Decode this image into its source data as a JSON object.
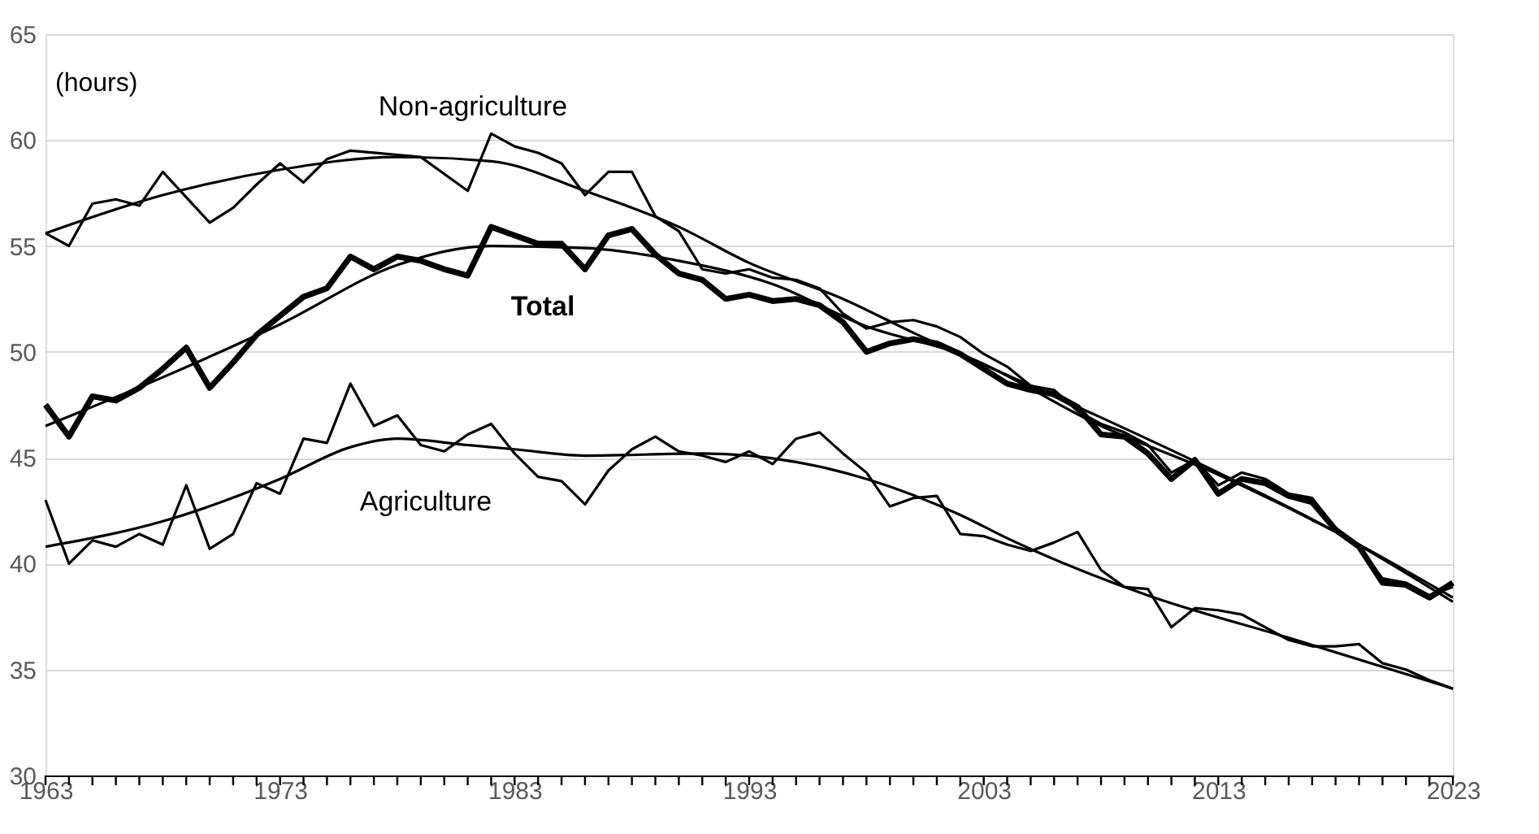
{
  "chart_data": {
    "type": "line",
    "ylabel": "(hours)",
    "x": [
      1963,
      1964,
      1965,
      1966,
      1967,
      1968,
      1969,
      1970,
      1971,
      1972,
      1973,
      1974,
      1975,
      1976,
      1977,
      1978,
      1979,
      1980,
      1981,
      1982,
      1983,
      1984,
      1985,
      1986,
      1987,
      1988,
      1989,
      1990,
      1991,
      1992,
      1993,
      1994,
      1995,
      1996,
      1997,
      1998,
      1999,
      2000,
      2001,
      2002,
      2003,
      2004,
      2005,
      2006,
      2007,
      2008,
      2009,
      2010,
      2011,
      2012,
      2013,
      2014,
      2015,
      2016,
      2017,
      2018,
      2019,
      2020,
      2021,
      2022,
      2023
    ],
    "series": [
      {
        "name": "Non-agriculture",
        "color": "#000000",
        "values": [
          55.6,
          55.0,
          57.0,
          57.2,
          56.9,
          58.5,
          57.3,
          56.1,
          56.8,
          57.9,
          58.9,
          58.0,
          59.1,
          59.5,
          59.4,
          59.3,
          59.2,
          58.4,
          57.6,
          60.3,
          59.7,
          59.4,
          58.9,
          57.4,
          58.5,
          58.5,
          56.4,
          55.7,
          53.9,
          53.7,
          53.9,
          53.5,
          53.4,
          53.0,
          51.8,
          51.1,
          51.4,
          51.5,
          51.2,
          50.7,
          49.9,
          49.3,
          48.4,
          48.2,
          47.2,
          46.6,
          46.2,
          45.6,
          44.3,
          44.9,
          43.7,
          44.3,
          44.0,
          43.3,
          43.1,
          41.7,
          40.8,
          39.3,
          39.1,
          38.5,
          38.9
        ]
      },
      {
        "name": "Total",
        "color": "#000000",
        "values": [
          47.5,
          46.0,
          47.9,
          47.7,
          48.3,
          49.2,
          50.2,
          48.3,
          49.5,
          50.8,
          51.7,
          52.6,
          53.0,
          54.5,
          53.9,
          54.5,
          54.3,
          53.9,
          53.6,
          55.9,
          55.5,
          55.1,
          55.1,
          53.9,
          55.5,
          55.8,
          54.6,
          53.7,
          53.4,
          52.5,
          52.7,
          52.4,
          52.5,
          52.2,
          51.4,
          50.0,
          50.4,
          50.6,
          50.4,
          49.9,
          49.2,
          48.5,
          48.2,
          48.0,
          47.4,
          46.1,
          46.0,
          45.2,
          44.0,
          44.9,
          43.3,
          44.0,
          43.8,
          43.2,
          42.9,
          41.6,
          40.8,
          39.1,
          39.0,
          38.4,
          39.1
        ]
      },
      {
        "name": "Agriculture",
        "color": "#000000",
        "values": [
          43.0,
          40.0,
          41.1,
          40.8,
          41.4,
          40.9,
          43.7,
          40.7,
          41.4,
          43.8,
          43.3,
          45.9,
          45.7,
          48.5,
          46.5,
          47.0,
          45.6,
          45.3,
          46.1,
          46.6,
          45.2,
          44.1,
          43.9,
          42.8,
          44.4,
          45.4,
          46.0,
          45.3,
          45.1,
          44.8,
          45.3,
          44.7,
          45.9,
          46.2,
          45.2,
          44.3,
          42.7,
          43.1,
          43.2,
          41.4,
          41.3,
          40.9,
          40.6,
          41.0,
          41.5,
          39.7,
          38.9,
          38.8,
          37.0,
          37.9,
          37.8,
          37.6,
          37.0,
          36.4,
          36.1,
          36.1,
          36.2,
          35.3,
          35.0,
          34.5,
          34.1
        ]
      },
      {
        "type": "line",
        "color": "#000000",
        "x": [
          1963,
          1968,
          1973,
          1978,
          1982,
          1986,
          1990,
          1993,
          1997,
          2000,
          2004,
          2008,
          2013,
          2018,
          2023
        ],
        "values": [
          55.6,
          57.4,
          58.6,
          59.2,
          59.0,
          57.6,
          55.9,
          54.2,
          52.5,
          50.9,
          48.9,
          46.9,
          44.3,
          41.5,
          38.2
        ]
      },
      {
        "type": "line",
        "color": "#000000",
        "x": [
          1963,
          1968,
          1973,
          1978,
          1982,
          1986,
          1990,
          1994,
          1998,
          2002,
          2008,
          2013,
          2018,
          2023
        ],
        "values": [
          46.5,
          48.8,
          51.3,
          54.1,
          55.0,
          54.9,
          54.3,
          53.2,
          51.2,
          49.9,
          46.5,
          44.2,
          41.5,
          38.4
        ]
      },
      {
        "type": "line",
        "color": "#000000",
        "x": [
          1963,
          1968,
          1973,
          1976,
          1978,
          1981,
          1983,
          1986,
          1991,
          1995,
          1998,
          2002,
          2004,
          2010,
          2016,
          2023
        ],
        "values": [
          40.8,
          42.0,
          44.0,
          45.5,
          45.9,
          45.6,
          45.4,
          45.1,
          45.2,
          44.8,
          44.0,
          42.3,
          41.2,
          38.5,
          36.5,
          34.1
        ]
      }
    ],
    "xlim": [
      1963,
      2023
    ],
    "xticks": [
      1963,
      {
        "value": 1964,
        "label": null
      },
      {
        "value": 1965,
        "label": null
      },
      {
        "value": 1966,
        "label": null
      },
      {
        "value": 1967,
        "label": null
      },
      {
        "value": 1968,
        "label": null
      },
      {
        "value": 1969,
        "label": null
      },
      {
        "value": 1970,
        "label": null
      },
      {
        "value": 1971,
        "label": null
      },
      {
        "value": 1972,
        "label": null
      },
      1973,
      {
        "value": 1974,
        "label": null
      },
      {
        "value": 1975,
        "label": null
      },
      {
        "value": 1976,
        "label": null
      },
      {
        "value": 1977,
        "label": null
      },
      {
        "value": 1978,
        "label": null
      },
      {
        "value": 1979,
        "label": null
      },
      {
        "value": 1980,
        "label": null
      },
      {
        "value": 1981,
        "label": null
      },
      {
        "value": 1982,
        "label": null
      },
      1983,
      {
        "value": 1984,
        "label": null
      },
      {
        "value": 1985,
        "label": null
      },
      {
        "value": 1986,
        "label": null
      },
      {
        "value": 1987,
        "label": null
      },
      {
        "value": 1988,
        "label": null
      },
      {
        "value": 1989,
        "label": null
      },
      {
        "value": 1990,
        "label": null
      },
      {
        "value": 1991,
        "label": null
      },
      {
        "value": 1992,
        "label": null
      },
      1993,
      {
        "value": 1994,
        "label": null
      },
      {
        "value": 1995,
        "label": null
      },
      {
        "value": 1996,
        "label": null
      },
      {
        "value": 1997,
        "label": null
      },
      {
        "value": 1998,
        "label": null
      },
      {
        "value": 1999,
        "label": null
      },
      {
        "value": 2000,
        "label": null
      },
      {
        "value": 2001,
        "label": null
      },
      {
        "value": 2002,
        "label": null
      },
      2003,
      {
        "value": 2004,
        "label": null
      },
      {
        "value": 2005,
        "label": null
      },
      {
        "value": 2006,
        "label": null
      },
      {
        "value": 2007,
        "label": null
      },
      {
        "value": 2008,
        "label": null
      },
      {
        "value": 2009,
        "label": null
      },
      {
        "value": 2010,
        "label": null
      },
      {
        "value": 2011,
        "label": null
      },
      {
        "value": 2012,
        "label": null
      },
      2013,
      {
        "value": 2014,
        "label": null
      },
      {
        "value": 2015,
        "label": null
      },
      {
        "value": 2016,
        "label": null
      },
      {
        "value": 2017,
        "label": null
      },
      {
        "value": 2018,
        "label": null
      },
      {
        "value": 2019,
        "label": null
      },
      {
        "value": 2020,
        "label": null
      },
      {
        "value": 2021,
        "label": null
      },
      {
        "value": 2022,
        "label": null
      },
      2023
    ],
    "ylim": [
      30,
      65
    ],
    "yticks": [
      30,
      35,
      40,
      45,
      50,
      55,
      60,
      65
    ],
    "grid": "y",
    "marker": "none",
    "line_style": "solid"
  }
}
